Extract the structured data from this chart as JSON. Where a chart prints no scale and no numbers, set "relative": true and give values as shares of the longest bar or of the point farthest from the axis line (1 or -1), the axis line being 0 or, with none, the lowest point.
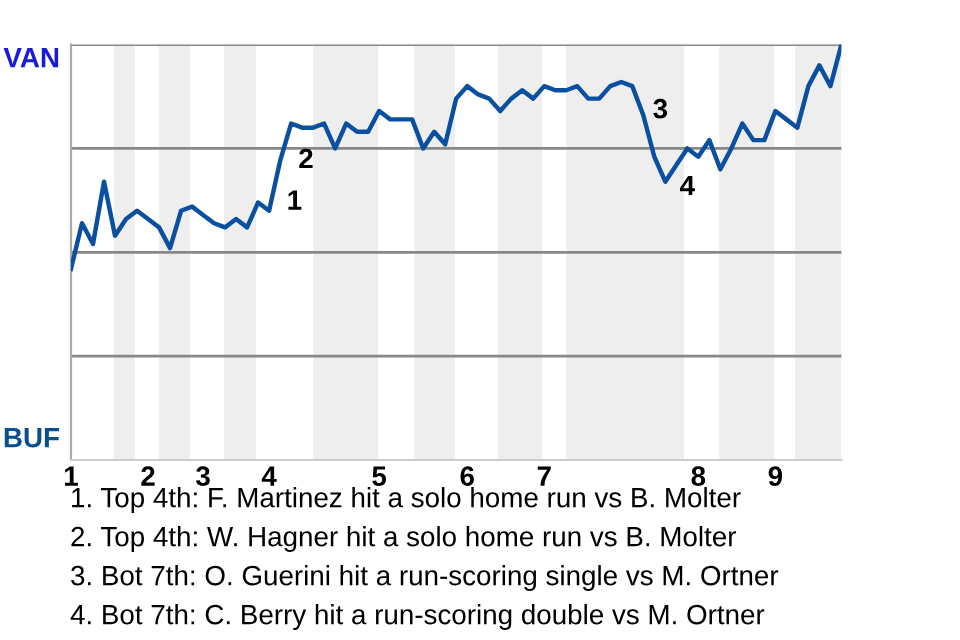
{
  "chart_data": {
    "type": "line",
    "relative": true,
    "categories": [
      "1",
      null,
      null,
      null,
      null,
      null,
      null,
      "2",
      null,
      null,
      null,
      null,
      "3",
      null,
      null,
      null,
      null,
      null,
      "4",
      null,
      null,
      null,
      null,
      null,
      null,
      null,
      null,
      null,
      "5",
      null,
      null,
      null,
      null,
      null,
      null,
      null,
      "6",
      null,
      null,
      null,
      null,
      null,
      null,
      "7",
      null,
      null,
      null,
      null,
      null,
      null,
      null,
      null,
      null,
      null,
      null,
      null,
      null,
      "8",
      null,
      null,
      null,
      null,
      null,
      null,
      "9",
      null,
      null,
      null,
      null,
      null,
      null
    ],
    "series": [
      {
        "color": "#0a4fa0",
        "values": [
          0.46,
          0.57,
          0.52,
          0.67,
          0.54,
          0.58,
          0.6,
          0.58,
          0.56,
          0.51,
          0.6,
          0.61,
          0.59,
          0.57,
          0.56,
          0.58,
          0.56,
          0.62,
          0.6,
          0.72,
          0.81,
          0.8,
          0.8,
          0.81,
          0.75,
          0.81,
          0.79,
          0.79,
          0.84,
          0.82,
          0.82,
          0.82,
          0.75,
          0.79,
          0.76,
          0.87,
          0.9,
          0.88,
          0.87,
          0.84,
          0.87,
          0.89,
          0.87,
          0.9,
          0.89,
          0.89,
          0.9,
          0.87,
          0.87,
          0.9,
          0.91,
          0.9,
          0.83,
          0.73,
          0.67,
          0.71,
          0.75,
          0.73,
          0.77,
          0.7,
          0.75,
          0.81,
          0.77,
          0.77,
          0.84,
          0.82,
          0.8,
          0.9,
          0.95,
          0.9,
          1.0
        ]
      }
    ],
    "ref_lines": [
      {
        "axis": "y",
        "value": 1,
        "color": "#888888"
      },
      {
        "axis": "y",
        "value": 0.75,
        "color": "#888888"
      },
      {
        "axis": "y",
        "value": 0.5,
        "color": "#888888"
      },
      {
        "axis": "y",
        "value": 0.25,
        "color": "#888888"
      }
    ],
    "marker": "none",
    "line_style": "solid",
    "annotations": [
      "VAN",
      "BUF",
      "1",
      "2",
      "3",
      "4",
      "1. Top 4th: F. Martinez hit a solo home run vs B. Molter",
      "2. Top 4th: W. Hagner hit a solo home run vs B. Molter",
      "3. Bot 7th: O. Guerini hit a run-scoring single vs M. Ortner",
      "4. Bot 7th: C. Berry hit a run-scoring double vs M. Ortner"
    ]
  }
}
